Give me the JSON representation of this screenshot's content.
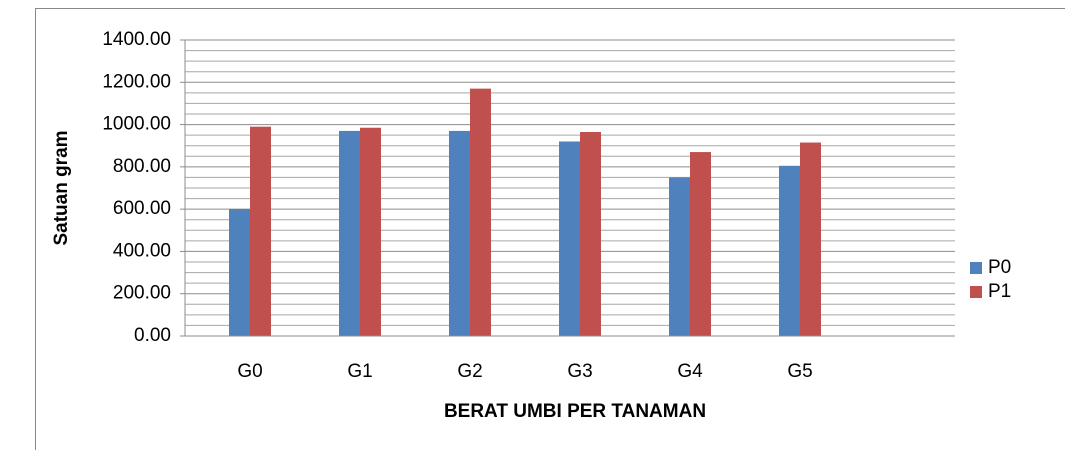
{
  "chart_data": {
    "type": "bar",
    "x_label": "BERAT UMBI PER TANAMAN",
    "y_label": "Satuan gram",
    "categories": [
      "G0",
      "G1",
      "G2",
      "G3",
      "G4",
      "G5",
      null
    ],
    "series": [
      {
        "name": "P0",
        "color": "#4f81bd",
        "values": [
          600,
          970,
          970,
          920,
          750,
          805,
          null
        ]
      },
      {
        "name": "P1",
        "color": "#c0504d",
        "values": [
          990,
          985,
          1170,
          965,
          870,
          915,
          null
        ]
      }
    ],
    "ylim": [
      0,
      1400
    ],
    "yticks": [
      {
        "value": 0,
        "label": "0.00"
      },
      {
        "value": 200,
        "label": "200.00"
      },
      {
        "value": 400,
        "label": "400.00"
      },
      {
        "value": 600,
        "label": "600.00"
      },
      {
        "value": 800,
        "label": "800.00"
      },
      {
        "value": 1000,
        "label": "1000.00"
      },
      {
        "value": 1200,
        "label": "1200.00"
      },
      {
        "value": 1400,
        "label": "1400.00"
      }
    ],
    "minor_yticks": [
      50,
      100,
      150,
      250,
      300,
      350,
      450,
      500,
      550,
      650,
      700,
      750,
      850,
      900,
      950,
      1050,
      1100,
      1150,
      1250,
      1300,
      1350
    ],
    "grid": true,
    "legend": "right"
  }
}
